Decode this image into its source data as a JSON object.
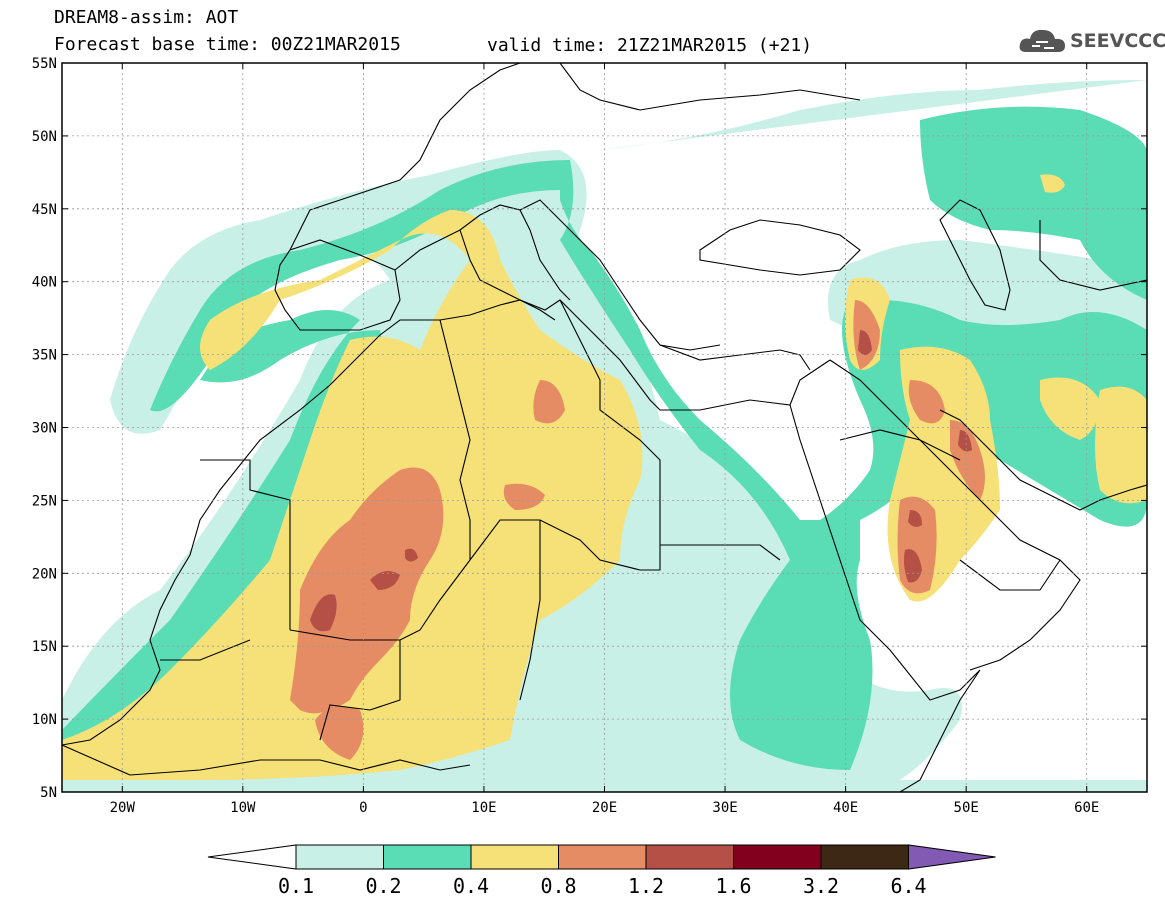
{
  "header": {
    "line1": "DREAM8-assim: AOT",
    "line2": "Forecast base time: 00Z21MAR2015",
    "line3": "valid time: 21Z21MAR2015 (+21)"
  },
  "logo": {
    "text": "SEEVCCC",
    "icon": "cloud-icon"
  },
  "map": {
    "lat_labels": [
      "55N",
      "50N",
      "45N",
      "40N",
      "35N",
      "30N",
      "25N",
      "20N",
      "15N",
      "10N",
      "5N"
    ],
    "lon_labels": [
      "20W",
      "10W",
      "0",
      "10E",
      "20E",
      "30E",
      "40E",
      "50E",
      "60E"
    ],
    "lon_range": [
      -25,
      65
    ],
    "lat_range": [
      5,
      55
    ],
    "gridlines": true
  },
  "colorbar": {
    "labels": [
      "0.1",
      "0.2",
      "0.4",
      "0.8",
      "1.2",
      "1.6",
      "3.2",
      "6.4"
    ],
    "colors": [
      "#ffffff",
      "#c8f0e6",
      "#5adcb4",
      "#f5e178",
      "#e68c64",
      "#b45046",
      "#82001e",
      "#3c2814",
      "#825ab4"
    ]
  }
}
